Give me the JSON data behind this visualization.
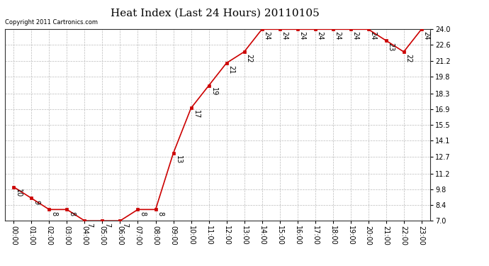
{
  "title": "Heat Index (Last 24 Hours) 20110105",
  "copyright": "Copyright 2011 Cartronics.com",
  "x_labels": [
    "00:00",
    "01:00",
    "02:00",
    "03:00",
    "04:00",
    "05:00",
    "06:00",
    "07:00",
    "08:00",
    "09:00",
    "10:00",
    "11:00",
    "12:00",
    "13:00",
    "14:00",
    "15:00",
    "16:00",
    "17:00",
    "18:00",
    "19:00",
    "20:00",
    "21:00",
    "22:00",
    "23:00"
  ],
  "y_values": [
    10,
    9,
    8,
    8,
    7,
    7,
    7,
    8,
    8,
    13,
    17,
    19,
    21,
    22,
    24,
    24,
    24,
    24,
    24,
    24,
    24,
    23,
    22,
    24
  ],
  "y_ticks": [
    7.0,
    8.4,
    9.8,
    11.2,
    12.7,
    14.1,
    15.5,
    16.9,
    18.3,
    19.8,
    21.2,
    22.6,
    24.0
  ],
  "ylim": [
    7.0,
    24.0
  ],
  "line_color": "#cc0000",
  "marker_color": "#cc0000",
  "bg_color": "#ffffff",
  "grid_color": "#bbbbbb",
  "title_fontsize": 11,
  "label_fontsize": 7,
  "annot_fontsize": 7,
  "copyright_fontsize": 6
}
